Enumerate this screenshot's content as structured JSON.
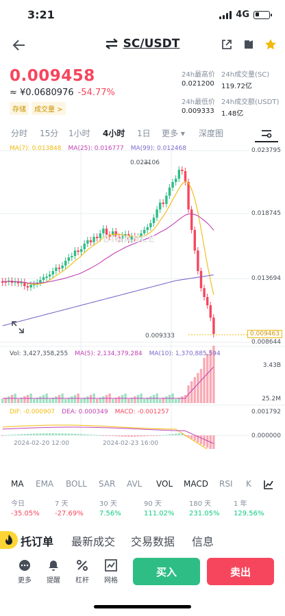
{
  "status": {
    "time": "3:21",
    "network": "4G"
  },
  "nav": {
    "pair": "SC/USDT"
  },
  "price": {
    "last": "0.009458",
    "cny": "≈ ¥0.0680976",
    "change": "-54.77%",
    "tags": [
      "存储",
      "成交量 >"
    ]
  },
  "stats": [
    {
      "label": "24h最高价",
      "value": "0.021200"
    },
    {
      "label": "24h成交量(SC)",
      "value": "119.72亿"
    },
    {
      "label": "24h最低价",
      "value": "0.009333"
    },
    {
      "label": "24h成交额(USDT)",
      "value": "1.48亿"
    }
  ],
  "tabs": [
    "分时",
    "15分",
    "1小时",
    "4小时",
    "1日",
    "更多 ▾",
    "深度图"
  ],
  "active_tab": "4小时",
  "chart": {
    "ma_legend": [
      {
        "text": "MA(7): 0.013848",
        "color": "#f0b90b"
      },
      {
        "text": "MA(25): 0.016777",
        "color": "#c03fb2"
      },
      {
        "text": "MA(99): 0.012468",
        "color": "#7b68c8"
      }
    ],
    "y_labels": [
      "0.023795",
      "0.018745",
      "0.013694",
      "0.008644"
    ],
    "high_label": "0.023106",
    "low_label": "0.009333",
    "last_label": "0.009463",
    "vol_legend": [
      {
        "text": "Vol: 3,427,358,255",
        "color": "#474d57"
      },
      {
        "text": "MA(5): 2,134,379,284",
        "color": "#c03fb2"
      },
      {
        "text": "MA(10): 1,370,885,594",
        "color": "#7b68c8"
      }
    ],
    "vol_y_labels": [
      "3.43B",
      "25.2M"
    ],
    "macd_legend": [
      {
        "text": "DIF: -0.000907",
        "color": "#f0b90b"
      },
      {
        "text": "DEA: 0.000349",
        "color": "#c03fb2"
      },
      {
        "text": "MACD: -0.001257",
        "color": "#f6465d"
      }
    ],
    "macd_y_labels": [
      "0.001792",
      "0.000000"
    ],
    "dates": [
      "2024-02-20 12:00",
      "2024-02-23 16:00"
    ],
    "watermark": "BINANCE"
  },
  "indicators": [
    "MA",
    "EMA",
    "BOLL",
    "SAR",
    "AVL",
    "VOL",
    "MACD",
    "RSI",
    "K"
  ],
  "active_indicators": [
    "VOL",
    "MACD"
  ],
  "performance": [
    {
      "label": "今日",
      "value": "-35.05%",
      "dir": "neg"
    },
    {
      "label": "7 天",
      "value": "-27.69%",
      "dir": "neg"
    },
    {
      "label": "30 天",
      "value": "7.56%",
      "dir": "pos"
    },
    {
      "label": "90 天",
      "value": "111.02%",
      "dir": "pos"
    },
    {
      "label": "180 天",
      "value": "231.05%",
      "dir": "pos"
    },
    {
      "label": "1 年",
      "value": "129.56%",
      "dir": "pos"
    }
  ],
  "sections": [
    "托订单",
    "最新成交",
    "交易数据",
    "信息"
  ],
  "bottom": {
    "items": [
      "更多",
      "提醒",
      "杠杆",
      "网格"
    ],
    "buy": "买入",
    "sell": "卖出"
  },
  "colors": {
    "up": "#2ebd85",
    "down": "#f6465d",
    "accent": "#fcd535"
  }
}
